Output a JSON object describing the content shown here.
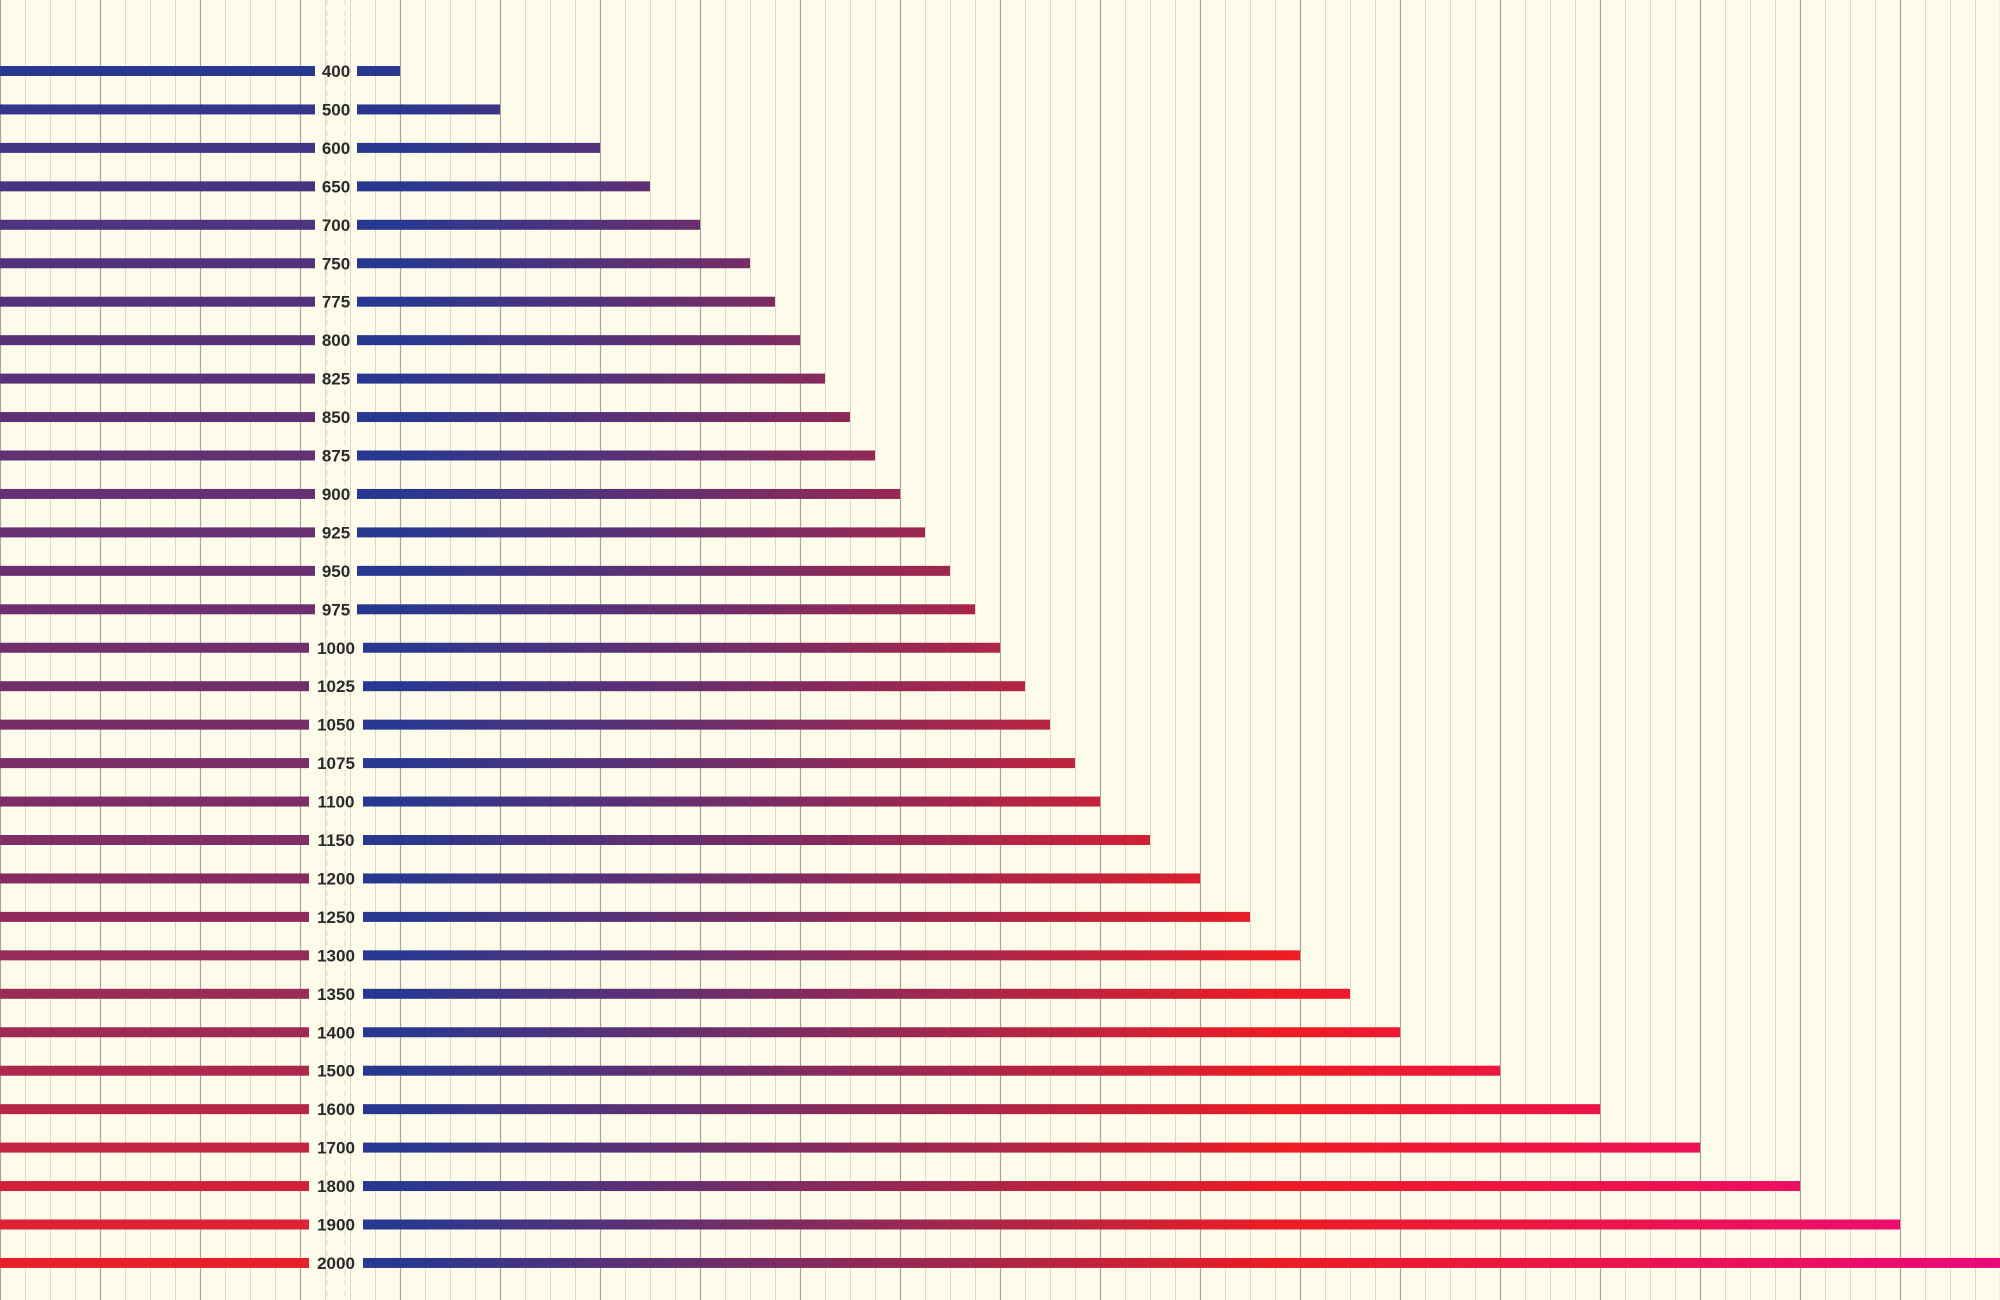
{
  "chart_data": {
    "type": "bar",
    "orientation": "horizontal",
    "title": "",
    "xlabel": "",
    "ylabel": "",
    "categories": [
      "400",
      "500",
      "600",
      "650",
      "700",
      "750",
      "775",
      "800",
      "825",
      "850",
      "875",
      "900",
      "925",
      "950",
      "975",
      "1000",
      "1025",
      "1050",
      "1075",
      "1100",
      "1150",
      "1200",
      "1250",
      "1300",
      "1350",
      "1400",
      "1500",
      "1600",
      "1700",
      "1800",
      "1900",
      "2000"
    ],
    "values": [
      400,
      500,
      600,
      650,
      700,
      750,
      775,
      800,
      825,
      850,
      875,
      900,
      925,
      950,
      975,
      1000,
      1025,
      1050,
      1075,
      1100,
      1150,
      1200,
      1250,
      1300,
      1350,
      1400,
      1500,
      1600,
      1700,
      1800,
      1900,
      2000
    ],
    "xlim": [
      0,
      2000
    ],
    "grid": true,
    "legend": "none",
    "colors": {
      "background": "#fdfbea",
      "major_grid": "#a9a79c",
      "minor_grid": "#d4d1bc",
      "label_text": "#2a2a2a",
      "left_segment_start": "#283891",
      "left_segment_end": "#e8202e",
      "right_segment_low": "#283891",
      "right_segment_mid": "#ed1c24",
      "right_segment_high": "#ec0a7a"
    }
  }
}
